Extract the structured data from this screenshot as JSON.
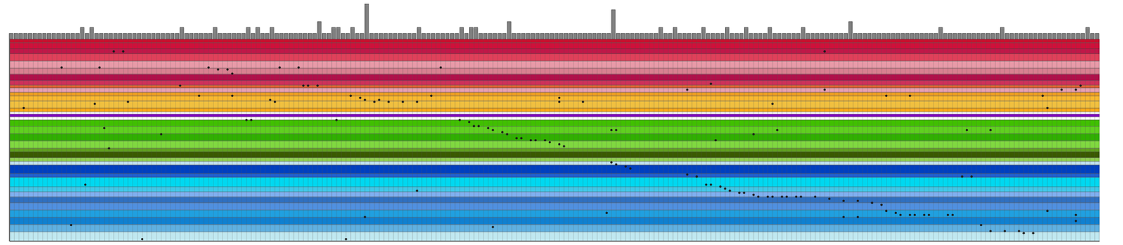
{
  "chart_data": {
    "type": "scatter",
    "tick_labels": false,
    "grid": true,
    "color": "#1a1a1a",
    "xlim": [
      0,
      230
    ],
    "ylim": [
      0,
      100
    ],
    "x": [
      22,
      24,
      11,
      19,
      42,
      44,
      46,
      47,
      57,
      61,
      91,
      36,
      62,
      63,
      65,
      143,
      148,
      172,
      172,
      72,
      74,
      75,
      77,
      78,
      80,
      83,
      86,
      89,
      40,
      47,
      55,
      56,
      25,
      18,
      3,
      116,
      116,
      121,
      161,
      185,
      190,
      218,
      219,
      222,
      225,
      226,
      50,
      51,
      69,
      95,
      97,
      98,
      99,
      101,
      102,
      104,
      105,
      107,
      108,
      110,
      111,
      113,
      114,
      116,
      117,
      20,
      32,
      21,
      127,
      128,
      149,
      157,
      162,
      202,
      207,
      127,
      128,
      130,
      131,
      143,
      145,
      147,
      148,
      150,
      151,
      152,
      154,
      155,
      157,
      158,
      160,
      161,
      163,
      164,
      166,
      167,
      170,
      173,
      176,
      179,
      182,
      184,
      185,
      187,
      188,
      190,
      191,
      193,
      194,
      198,
      199,
      176,
      179,
      205,
      207,
      210,
      213,
      214,
      216,
      219,
      225,
      225,
      201,
      203,
      86,
      16,
      28,
      71,
      126,
      102,
      75,
      13
    ],
    "y": [
      6,
      6,
      14,
      14,
      14,
      15,
      15,
      17,
      14,
      14,
      14,
      23,
      23,
      23,
      23,
      25,
      22,
      25,
      6,
      28,
      29,
      30,
      31,
      30,
      31,
      31,
      31,
      28,
      28,
      28,
      30,
      31,
      31,
      32,
      34,
      29,
      31,
      31,
      32,
      28,
      28,
      28,
      34,
      25,
      25,
      23,
      40,
      40,
      40,
      40,
      41,
      43,
      43,
      44,
      45,
      46,
      47,
      49,
      49,
      50,
      50,
      50,
      51,
      52,
      53,
      44,
      47,
      54,
      45,
      45,
      50,
      47,
      45,
      45,
      45,
      61,
      62,
      63,
      64,
      67,
      68,
      72,
      72,
      73,
      74,
      75,
      76,
      76,
      77,
      78,
      78,
      78,
      78,
      78,
      78,
      78,
      78,
      79,
      80,
      80,
      81,
      82,
      85,
      86,
      87,
      87,
      87,
      87,
      87,
      87,
      87,
      88,
      88,
      92,
      95,
      95,
      95,
      96,
      96,
      85,
      87,
      90,
      68,
      68,
      75,
      72,
      99,
      99,
      86,
      93,
      88,
      92
    ],
    "bands": [
      {
        "y0": 0,
        "y1": 1.8,
        "color": "#c8102e"
      },
      {
        "y0": 1.8,
        "y1": 4.7,
        "color": "#d0103a"
      },
      {
        "y0": 4.7,
        "y1": 7.2,
        "color": "#c01848"
      },
      {
        "y0": 7.2,
        "y1": 10.8,
        "color": "#e0405a"
      },
      {
        "y0": 10.8,
        "y1": 14.4,
        "color": "#e89aa8"
      },
      {
        "y0": 14.4,
        "y1": 17.3,
        "color": "#d88090"
      },
      {
        "y0": 17.3,
        "y1": 20.5,
        "color": "#b0104a"
      },
      {
        "y0": 20.5,
        "y1": 22.7,
        "color": "#d0305a"
      },
      {
        "y0": 22.7,
        "y1": 24.1,
        "color": "#e06030"
      },
      {
        "y0": 24.1,
        "y1": 26.3,
        "color": "#e8a0b0"
      },
      {
        "y0": 26.3,
        "y1": 28.1,
        "color": "#f0a020"
      },
      {
        "y0": 28.1,
        "y1": 30.6,
        "color": "#f8b830"
      },
      {
        "y0": 30.6,
        "y1": 34.2,
        "color": "#f0c040"
      },
      {
        "y0": 34.2,
        "y1": 36,
        "color": "#f8a818"
      },
      {
        "y0": 36,
        "y1": 37.1,
        "color": "#ffffff"
      },
      {
        "y0": 37.1,
        "y1": 38.5,
        "color": "#8000c0"
      },
      {
        "y0": 38.5,
        "y1": 40,
        "color": "#ffffff"
      },
      {
        "y0": 40,
        "y1": 43.2,
        "color": "#40c000"
      },
      {
        "y0": 43.2,
        "y1": 46.8,
        "color": "#60d020"
      },
      {
        "y0": 46.8,
        "y1": 50.4,
        "color": "#30b000"
      },
      {
        "y0": 50.4,
        "y1": 54,
        "color": "#80d840"
      },
      {
        "y0": 54,
        "y1": 55.8,
        "color": "#60a020"
      },
      {
        "y0": 55.8,
        "y1": 58.7,
        "color": "#3a5a00"
      },
      {
        "y0": 58.7,
        "y1": 60.5,
        "color": "#90d050"
      },
      {
        "y0": 60.5,
        "y1": 62.3,
        "color": "#c0e0f0"
      },
      {
        "y0": 62.3,
        "y1": 66.6,
        "color": "#0040c0"
      },
      {
        "y0": 66.6,
        "y1": 68.4,
        "color": "#2060d0"
      },
      {
        "y0": 68.4,
        "y1": 73.1,
        "color": "#00d8f0"
      },
      {
        "y0": 73.1,
        "y1": 75.6,
        "color": "#40c8e8"
      },
      {
        "y0": 75.6,
        "y1": 78.1,
        "color": "#80b0f0"
      },
      {
        "y0": 78.1,
        "y1": 81,
        "color": "#3070c0"
      },
      {
        "y0": 81,
        "y1": 84.6,
        "color": "#5090e0"
      },
      {
        "y0": 84.6,
        "y1": 88.2,
        "color": "#20a0e0"
      },
      {
        "y0": 88.2,
        "y1": 91.8,
        "color": "#1080d0"
      },
      {
        "y0": 91.8,
        "y1": 95.4,
        "color": "#60b0e0"
      },
      {
        "y0": 95.4,
        "y1": 100,
        "color": "#c0e8f0"
      }
    ],
    "column_color": "#808080",
    "counts_ylim": [
      0,
      6
    ],
    "column_counts": [
      1,
      1,
      1,
      1,
      1,
      1,
      1,
      1,
      1,
      1,
      1,
      1,
      1,
      1,
      1,
      2,
      1,
      2,
      1,
      1,
      1,
      1,
      1,
      1,
      1,
      1,
      1,
      1,
      1,
      1,
      1,
      1,
      1,
      1,
      1,
      1,
      2,
      1,
      1,
      1,
      1,
      1,
      1,
      2,
      1,
      1,
      1,
      1,
      1,
      1,
      2,
      1,
      2,
      1,
      1,
      2,
      1,
      1,
      1,
      1,
      1,
      1,
      1,
      1,
      1,
      3,
      1,
      1,
      2,
      2,
      1,
      1,
      2,
      1,
      1,
      6,
      1,
      1,
      1,
      1,
      1,
      1,
      1,
      1,
      1,
      1,
      2,
      1,
      1,
      1,
      1,
      1,
      1,
      1,
      1,
      2,
      1,
      2,
      2,
      1,
      1,
      1,
      1,
      1,
      1,
      3,
      1,
      1,
      1,
      1,
      1,
      1,
      1,
      1,
      1,
      1,
      1,
      1,
      1,
      1,
      1,
      1,
      1,
      1,
      1,
      1,
      1,
      5,
      1,
      1,
      1,
      1,
      1,
      1,
      1,
      1,
      1,
      2,
      1,
      1,
      2,
      1,
      1,
      1,
      1,
      1,
      2,
      1,
      1,
      1,
      1,
      2,
      1,
      1,
      1,
      2,
      1,
      1,
      1,
      1,
      2,
      1,
      1,
      1,
      1,
      1,
      1,
      2,
      1,
      1,
      1,
      1,
      1,
      1,
      1,
      1,
      1,
      3,
      1,
      1,
      1,
      1,
      1,
      1,
      1,
      1,
      1,
      1,
      1,
      1,
      1,
      1,
      1,
      1,
      1,
      1,
      2,
      1,
      1,
      1,
      1,
      1,
      1,
      1,
      1,
      1,
      1,
      1,
      1,
      2,
      1,
      1,
      1,
      1,
      1,
      1,
      1,
      1,
      1,
      1,
      1,
      1,
      1,
      1,
      1,
      1,
      1,
      2,
      1,
      1
    ]
  }
}
